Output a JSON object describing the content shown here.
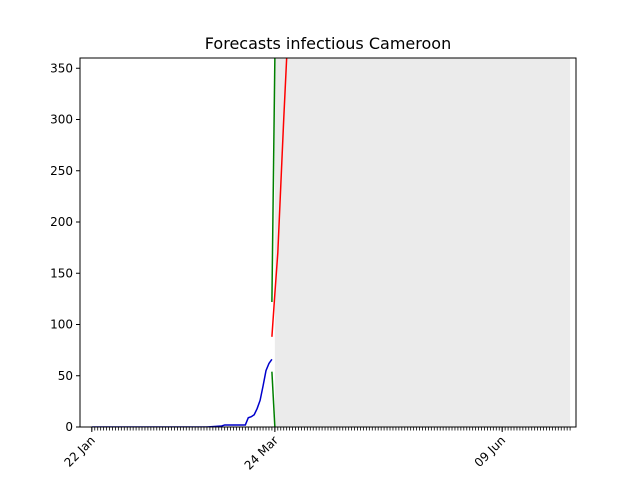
{
  "chart_data": {
    "type": "line",
    "title": "Forecasts infectious Cameroon",
    "xlabel": "",
    "ylabel": "",
    "x_start": "2020-01-18",
    "x_end": "2020-07-04",
    "ylim": [
      0,
      360
    ],
    "y_ticks": [
      0,
      50,
      100,
      150,
      200,
      250,
      300,
      350
    ],
    "x_tick_labels": [
      {
        "label": "22 Jan",
        "date": "2020-01-22"
      },
      {
        "label": "24 Mar",
        "date": "2020-03-24"
      },
      {
        "label": "09 Jun",
        "date": "2020-06-09"
      }
    ],
    "shaded_region": {
      "from": "2020-03-24",
      "to": "2020-07-02",
      "color": "#ebebeb"
    },
    "series": [
      {
        "color": "#0000cc",
        "x": [
          "2020-01-22",
          "2020-02-10",
          "2020-03-01",
          "2020-03-06",
          "2020-03-07",
          "2020-03-13",
          "2020-03-14",
          "2020-03-15",
          "2020-03-16",
          "2020-03-17",
          "2020-03-18",
          "2020-03-19",
          "2020-03-20",
          "2020-03-21",
          "2020-03-22",
          "2020-03-23"
        ],
        "y": [
          0,
          0,
          0,
          1,
          2,
          2,
          2,
          9,
          10,
          12,
          18,
          26,
          40,
          55,
          62,
          66
        ]
      },
      {
        "color": "#ff0000",
        "x": [
          "2020-03-23",
          "2020-03-24",
          "2020-03-25",
          "2020-03-26",
          "2020-03-27",
          "2020-03-28"
        ],
        "y": [
          88,
          130,
          170,
          235,
          300,
          360
        ]
      },
      {
        "color": "#008000",
        "x": [
          "2020-03-23",
          "2020-03-24"
        ],
        "y": [
          122,
          360
        ]
      },
      {
        "color": "#008000",
        "x": [
          "2020-03-23",
          "2020-03-24"
        ],
        "y": [
          54,
          0
        ]
      }
    ]
  }
}
